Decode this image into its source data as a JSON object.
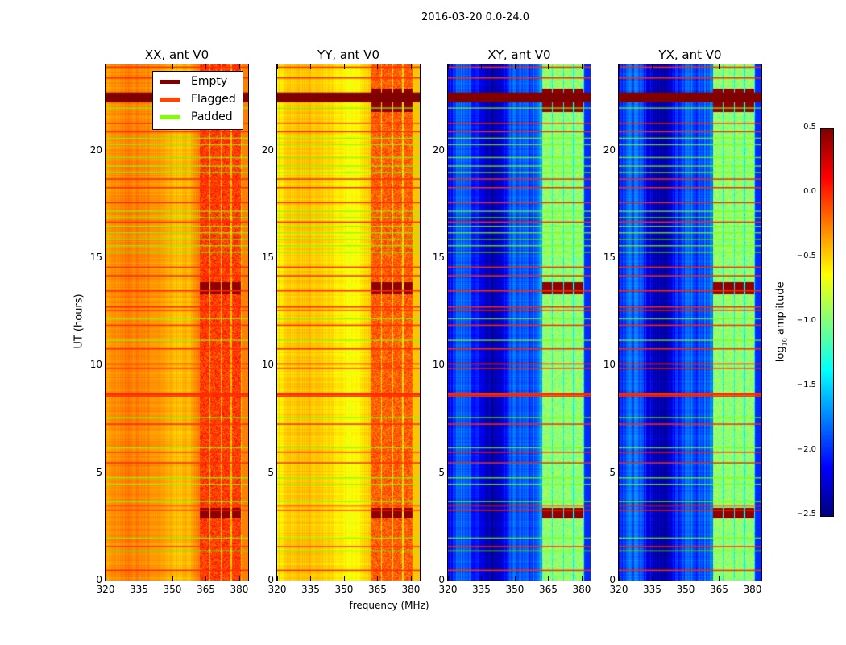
{
  "chart_data": {
    "type": "heatmap",
    "title": "2016-03-20 0.0-24.0",
    "xlabel": "frequency (MHz)",
    "ylabel": "UT (hours)",
    "xlim": [
      320,
      384
    ],
    "ylim": [
      0,
      24
    ],
    "xticks": [
      320,
      335,
      350,
      365,
      380
    ],
    "yticks": [
      0,
      5,
      10,
      15,
      20
    ],
    "panels": [
      {
        "title": "XX, ant V0",
        "continuum_level": -0.35,
        "band_level": -0.05,
        "burst_level": 0.45
      },
      {
        "title": "YY, ant V0",
        "continuum_level": -0.55,
        "band_level": -0.15,
        "burst_level": 0.45
      },
      {
        "title": "XY, ant V0",
        "continuum_level": -2.1,
        "band_level": -0.95,
        "burst_level": 0.45
      },
      {
        "title": "YX, ant V0",
        "continuum_level": -2.1,
        "band_level": -0.95,
        "burst_level": 0.45
      }
    ],
    "band_subchannels_mhz": [
      [
        362,
        366.5
      ],
      [
        367,
        371.5
      ],
      [
        372,
        376
      ],
      [
        376.5,
        380.5
      ]
    ],
    "burst_hours": [
      [
        2.9,
        3.4
      ],
      [
        13.35,
        13.9
      ],
      [
        21.8,
        22.9
      ]
    ],
    "empty_hours": [
      [
        22.25,
        22.7
      ]
    ],
    "flagged_hours": [
      0.5,
      1.6,
      3.3,
      3.5,
      5.5,
      6.0,
      7.3,
      8.6,
      8.7,
      9.9,
      10.1,
      10.8,
      11.9,
      12.6,
      12.75,
      13.5,
      14.2,
      14.6,
      16.7,
      17.6,
      18.3,
      18.7,
      20.9,
      21.3,
      23.4,
      23.9
    ],
    "padded_hours": [
      1.4,
      2.0,
      3.7,
      4.5,
      4.8,
      6.2,
      7.6,
      11.2,
      12.2,
      15.3,
      15.6,
      15.9,
      16.2,
      16.5,
      16.9,
      17.2,
      19.0,
      19.3,
      19.7,
      20.3,
      20.6,
      22.0
    ],
    "legend": {
      "position": "top-right of first panel",
      "entries": [
        {
          "label": "Empty",
          "color": "#800000"
        },
        {
          "label": "Flagged",
          "color": "#ff4500"
        },
        {
          "label": "Padded",
          "color": "#7fff00"
        }
      ]
    },
    "colorbar": {
      "label": "log10 amplitude",
      "label_main": "log",
      "label_sub": "10",
      "label_rest": " amplitude",
      "range": [
        -2.5,
        0.5
      ],
      "ticks": [
        "0.5",
        "0.0",
        "−0.5",
        "−1.0",
        "−1.5",
        "−2.0",
        "−2.5"
      ],
      "tick_values": [
        0.5,
        0.0,
        -0.5,
        -1.0,
        -1.5,
        -2.0,
        -2.5
      ],
      "colormap": "jet"
    }
  }
}
